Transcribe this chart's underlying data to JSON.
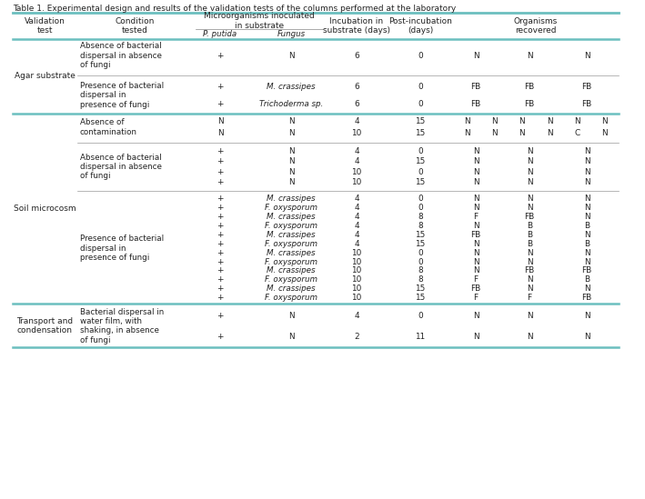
{
  "title": "Table 1. Experimental design and results of the validation tests of the columns performed at the laboratory",
  "cyan": "#6bbfbf",
  "bg": "#ffffff",
  "fg": "#222222",
  "sections": [
    {
      "validation": "Agar substrate",
      "groups": [
        {
          "condition": "Absence of bacterial\ndispersal in absence\nof fungi",
          "rows": [
            [
              "+",
              "N",
              "6",
              "0",
              "N",
              "N",
              "N"
            ]
          ],
          "italic": false
        },
        {
          "condition": "Presence of bacterial\ndispersal in\npresence of fungi",
          "rows": [
            [
              "+",
              "M. crassipes",
              "6",
              "0",
              "FB",
              "FB",
              "FB"
            ],
            [
              "+",
              "Trichoderma sp.",
              "6",
              "0",
              "FB",
              "FB",
              "FB"
            ]
          ],
          "italic": true
        }
      ]
    },
    {
      "validation": "Soil microcosm",
      "groups": [
        {
          "condition": "Absence of\ncontamination",
          "rows": [
            [
              "N",
              "N",
              "4",
              "15",
              "N",
              "N",
              "N",
              "N",
              "N",
              "N"
            ],
            [
              "N",
              "N",
              "10",
              "15",
              "N",
              "N",
              "N",
              "N",
              "C",
              "N"
            ]
          ],
          "italic": false,
          "wide_org": true
        },
        {
          "condition": "Absence of bacterial\ndispersal in absence\nof fungi",
          "rows": [
            [
              "+",
              "N",
              "4",
              "0",
              "N",
              "N",
              "N"
            ],
            [
              "+",
              "N",
              "4",
              "15",
              "N",
              "N",
              "N"
            ],
            [
              "+",
              "N",
              "10",
              "0",
              "N",
              "N",
              "N"
            ],
            [
              "+",
              "N",
              "10",
              "15",
              "N",
              "N",
              "N"
            ]
          ],
          "italic": false
        },
        {
          "condition": "Presence of bacterial\ndispersal in\npresence of fungi",
          "rows": [
            [
              "+",
              "M. crassipes",
              "4",
              "0",
              "N",
              "N",
              "N"
            ],
            [
              "+",
              "F. oxysporum",
              "4",
              "0",
              "N",
              "N",
              "N"
            ],
            [
              "+",
              "M. crassipes",
              "4",
              "8",
              "F",
              "FB",
              "N"
            ],
            [
              "+",
              "F. oxysporum",
              "4",
              "8",
              "N",
              "B",
              "B"
            ],
            [
              "+",
              "M. crassipes",
              "4",
              "15",
              "FB",
              "B",
              "N"
            ],
            [
              "+",
              "F. oxysporum",
              "4",
              "15",
              "N",
              "B",
              "B"
            ],
            [
              "+",
              "M. crassipes",
              "10",
              "0",
              "N",
              "N",
              "N"
            ],
            [
              "+",
              "F. oxysporum",
              "10",
              "0",
              "N",
              "N",
              "N"
            ],
            [
              "+",
              "M. crassipes",
              "10",
              "8",
              "N",
              "FB",
              "FB"
            ],
            [
              "+",
              "F. oxysporum",
              "10",
              "8",
              "F",
              "N",
              "B"
            ],
            [
              "+",
              "M. crassipes",
              "10",
              "15",
              "FB",
              "N",
              "N"
            ],
            [
              "+",
              "F. oxysporum",
              "10",
              "15",
              "F",
              "F",
              "FB"
            ]
          ],
          "italic": true
        }
      ]
    },
    {
      "validation": "Transport and\ncondensation",
      "groups": [
        {
          "condition": "Bacterial dispersal in\nwater film, with\nshaking, in absence\nof fungi",
          "rows": [
            [
              "+",
              "N",
              "4",
              "0",
              "N",
              "N",
              "N"
            ],
            [
              "+",
              "N",
              "2",
              "11",
              "N",
              "N",
              "N"
            ]
          ],
          "italic": false
        }
      ]
    }
  ]
}
